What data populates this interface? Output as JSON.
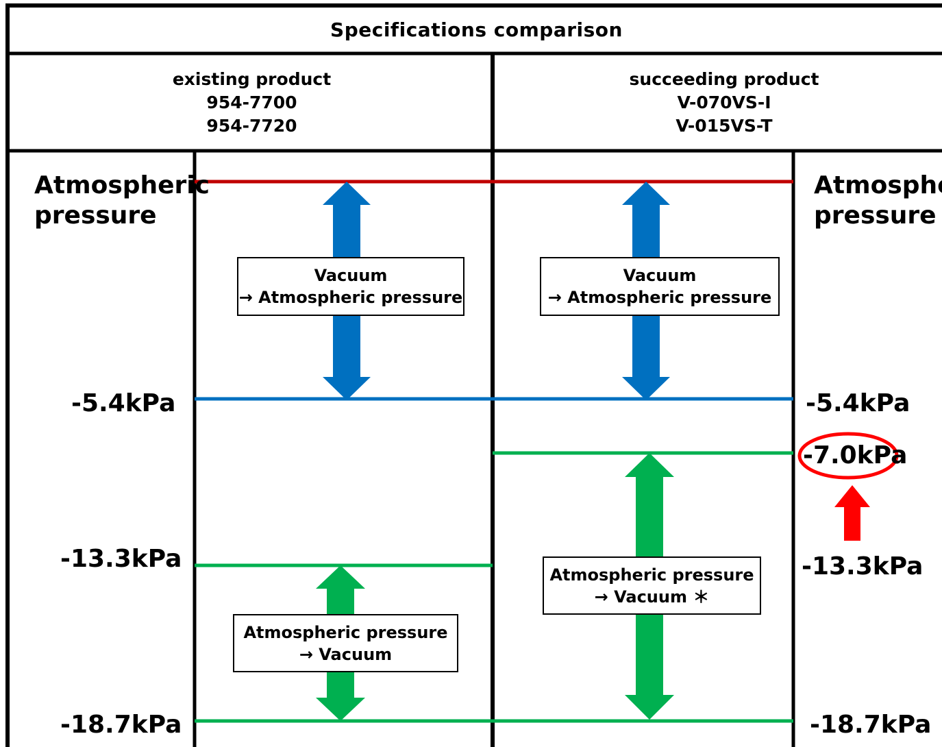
{
  "title": "Specifications comparison",
  "existing": {
    "heading": "existing product",
    "model_1": "954-7700",
    "model_2": "954-7720"
  },
  "succeeding": {
    "heading": "succeeding product",
    "model_1": "V-070VS-I",
    "model_2": "V-015VS-T"
  },
  "pressure_labels": {
    "atmospheric_line1": "Atmospheric",
    "atmospheric_line2": "pressure",
    "p_5_4": "-5.4kPa",
    "p_7_0": "-7.0kPa",
    "p_13_3": "-13.3kPa",
    "p_18_7": "-18.7kPa"
  },
  "boxes": {
    "vacuum_to_atm_line1": "Vacuum",
    "vacuum_to_atm_line2": "→ Atmospheric pressure",
    "atm_to_vacuum_line1": "Atmospheric pressure",
    "atm_to_vacuum_line2": "→ Vacuum",
    "atm_to_vacuum_star_line2": "→ Vacuum ＊"
  },
  "colors": {
    "atmospheric_line": "#c00000",
    "release_blue": "#0070c0",
    "suction_green": "#00b050",
    "highlight_red": "#ff0000"
  }
}
